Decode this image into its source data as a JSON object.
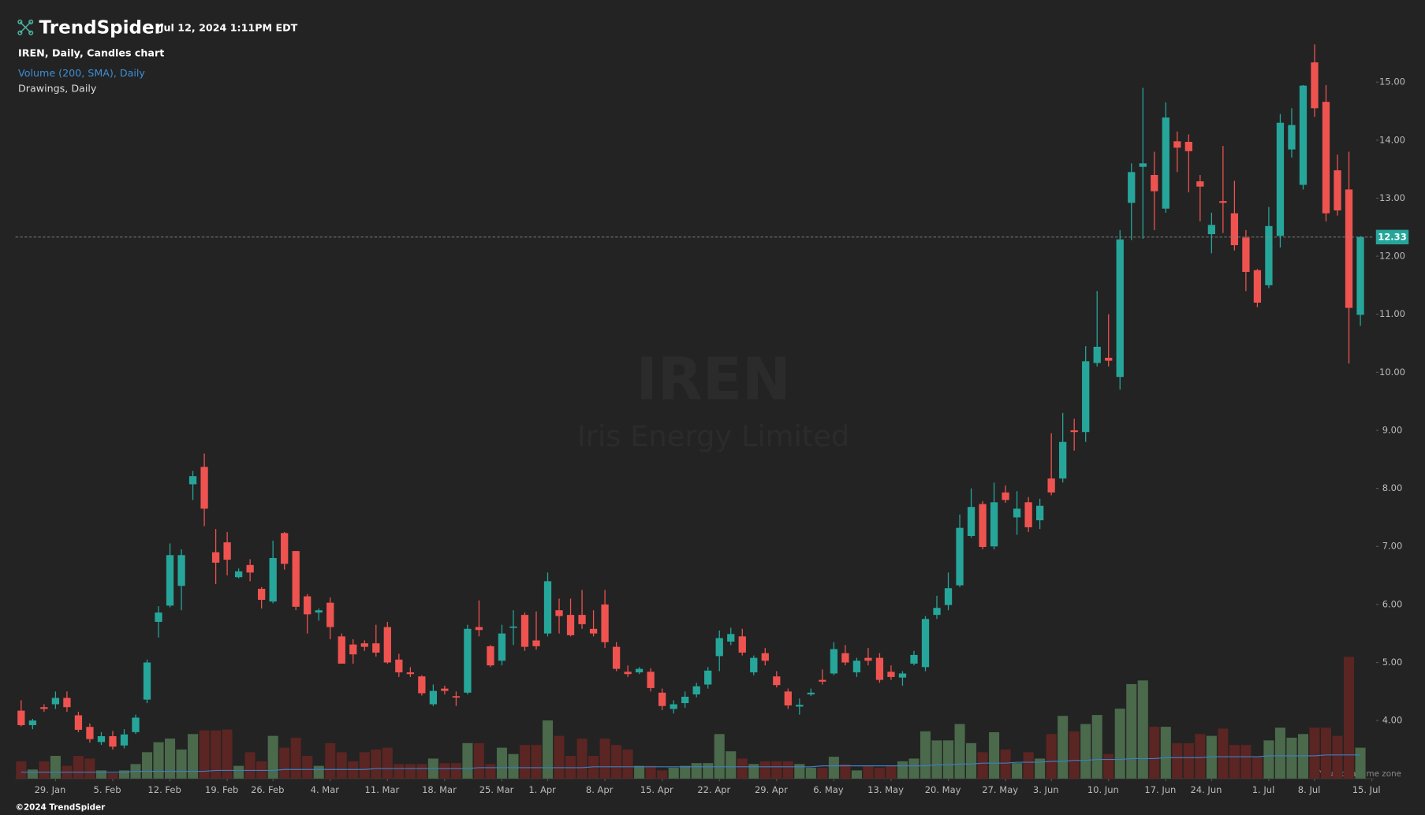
{
  "header": {
    "brand": "TrendSpider",
    "timestamp": "Jul 12, 2024 1:11PM EDT",
    "chart_label": "IREN, Daily, Candles chart",
    "volume_label": "Volume (200, SMA), Daily",
    "drawings_label": "Drawings, Daily"
  },
  "watermark": {
    "ticker": "IREN",
    "company": "Iris Energy Limited"
  },
  "footer": {
    "copyright": "©2024 TrendSpider",
    "timezone": "Your local time zone"
  },
  "chart_data": {
    "type": "candlestick",
    "up_color": "#26a69a",
    "down_color": "#ef5350",
    "volume_up_color": "#4a6a4b",
    "volume_down_color": "#5a2522",
    "sma_color": "#3d7fc4",
    "last_price_color": "#26a69a",
    "xlim": [
      -0.5,
      118.2
    ],
    "xticks": [
      {
        "value": 3,
        "label": "29. Jan"
      },
      {
        "value": 8,
        "label": "5. Feb"
      },
      {
        "value": 13,
        "label": "12. Feb"
      },
      {
        "value": 18,
        "label": "19. Feb"
      },
      {
        "value": 22,
        "label": "26. Feb"
      },
      {
        "value": 27,
        "label": "4. Mar"
      },
      {
        "value": 32,
        "label": "11. Mar"
      },
      {
        "value": 37,
        "label": "18. Mar"
      },
      {
        "value": 42,
        "label": "25. Mar"
      },
      {
        "value": 46,
        "label": "1. Apr"
      },
      {
        "value": 51,
        "label": "8. Apr"
      },
      {
        "value": 56,
        "label": "15. Apr"
      },
      {
        "value": 61,
        "label": "22. Apr"
      },
      {
        "value": 66,
        "label": "29. Apr"
      },
      {
        "value": 71,
        "label": "6. May"
      },
      {
        "value": 76,
        "label": "13. May"
      },
      {
        "value": 81,
        "label": "20. May"
      },
      {
        "value": 86,
        "label": "27. May"
      },
      {
        "value": 90,
        "label": "3. Jun"
      },
      {
        "value": 95,
        "label": "10. Jun"
      },
      {
        "value": 100,
        "label": "17. Jun"
      },
      {
        "value": 104,
        "label": "24. Jun"
      },
      {
        "value": 109,
        "label": "1. Jul"
      },
      {
        "value": 113,
        "label": "8. Jul"
      },
      {
        "value": 118,
        "label": "15. Jul"
      }
    ],
    "ylim": [
      3,
      16.1
    ],
    "yticks": [
      {
        "value": 4,
        "label": "4.00"
      },
      {
        "value": 5,
        "label": "5.00"
      },
      {
        "value": 6,
        "label": "6.00"
      },
      {
        "value": 7,
        "label": "7.00"
      },
      {
        "value": 8,
        "label": "8.00"
      },
      {
        "value": 9,
        "label": "9.00"
      },
      {
        "value": 10,
        "label": "10.00"
      },
      {
        "value": 11,
        "label": "11.00"
      },
      {
        "value": 12,
        "label": "12.00"
      },
      {
        "value": 13,
        "label": "13.00"
      },
      {
        "value": 14,
        "label": "14.00"
      },
      {
        "value": 15,
        "label": "15.00"
      }
    ],
    "last_price": 12.33,
    "open": [
      4.17,
      3.92,
      4.23,
      4.28,
      4.39,
      4.09,
      3.89,
      3.63,
      3.73,
      3.57,
      3.8,
      4.36,
      5.7,
      5.98,
      6.32,
      8.07,
      8.37,
      6.9,
      7.07,
      6.47,
      6.68,
      6.27,
      6.05,
      7.23,
      6.92,
      6.14,
      5.86,
      6.03,
      5.45,
      5.31,
      5.33,
      5.33,
      5.61,
      5.05,
      4.83,
      4.76,
      4.28,
      4.55,
      4.42,
      4.48,
      5.61,
      5.28,
      5.03,
      5.6,
      5.82,
      5.38,
      5.5,
      5.9,
      5.82,
      5.82,
      5.58,
      6.0,
      5.27,
      4.84,
      4.83,
      4.84,
      4.48,
      4.2,
      4.3,
      4.45,
      4.62,
      5.11,
      5.36,
      5.45,
      4.83,
      5.16,
      4.76,
      4.5,
      4.24,
      4.45,
      4.7,
      4.81,
      5.16,
      4.83,
      5.08,
      5.08,
      4.84,
      4.74,
      4.98,
      4.92,
      5.82,
      5.99,
      6.33,
      7.18,
      7.73,
      7.0,
      7.93,
      7.5,
      7.76,
      7.45,
      8.17,
      8.17,
      9.0,
      8.97,
      10.16,
      10.25,
      9.92,
      12.92,
      13.54,
      13.4,
      12.82,
      13.98,
      13.97,
      13.29,
      12.38,
      12.95,
      12.74,
      12.32,
      11.76,
      11.5,
      12.35,
      13.84,
      13.23,
      15.34,
      14.66,
      13.48,
      13.15,
      10.99
    ],
    "high": [
      4.35,
      4.03,
      4.28,
      4.5,
      4.5,
      4.15,
      3.95,
      3.8,
      3.82,
      3.85,
      4.1,
      5.05,
      5.97,
      7.05,
      6.95,
      8.3,
      8.6,
      7.3,
      7.25,
      6.62,
      6.78,
      6.3,
      7.1,
      7.25,
      6.92,
      6.18,
      5.93,
      6.12,
      5.5,
      5.4,
      5.38,
      5.65,
      5.7,
      5.15,
      4.92,
      4.78,
      4.62,
      4.6,
      4.5,
      5.65,
      6.07,
      5.3,
      5.65,
      5.9,
      5.86,
      5.88,
      6.55,
      6.1,
      6.1,
      6.25,
      5.9,
      6.25,
      5.35,
      4.95,
      4.92,
      4.9,
      4.55,
      4.35,
      4.5,
      4.65,
      4.92,
      5.55,
      5.6,
      5.58,
      5.12,
      5.25,
      4.85,
      4.55,
      4.38,
      4.55,
      4.88,
      5.35,
      5.3,
      5.08,
      5.25,
      5.16,
      4.95,
      4.85,
      5.2,
      5.8,
      6.15,
      6.55,
      7.55,
      8.0,
      7.78,
      8.1,
      8.05,
      7.95,
      7.85,
      7.82,
      8.95,
      9.3,
      9.2,
      10.45,
      11.4,
      11.0,
      12.45,
      13.6,
      14.9,
      13.8,
      14.65,
      14.15,
      14.1,
      13.4,
      12.75,
      13.9,
      13.3,
      12.45,
      11.78,
      12.85,
      14.45,
      14.55,
      14.95,
      15.65,
      14.95,
      13.75,
      13.8,
      12.35
    ],
    "low": [
      3.9,
      3.85,
      4.15,
      4.2,
      4.15,
      3.8,
      3.62,
      3.58,
      3.5,
      3.52,
      3.77,
      4.3,
      5.43,
      5.95,
      5.9,
      7.8,
      7.35,
      6.35,
      6.5,
      6.45,
      6.4,
      5.93,
      6.02,
      6.6,
      5.9,
      5.5,
      5.72,
      5.4,
      4.98,
      4.98,
      5.2,
      5.1,
      4.98,
      4.75,
      4.75,
      4.43,
      4.25,
      4.45,
      4.25,
      4.45,
      5.45,
      4.92,
      4.95,
      5.3,
      5.2,
      5.22,
      5.45,
      5.5,
      5.45,
      5.58,
      5.45,
      5.25,
      4.85,
      4.75,
      4.8,
      4.5,
      4.18,
      4.12,
      4.22,
      4.4,
      4.55,
      4.85,
      5.3,
      5.12,
      4.78,
      4.95,
      4.57,
      4.2,
      4.1,
      4.42,
      4.62,
      4.78,
      4.95,
      4.75,
      4.95,
      4.65,
      4.7,
      4.6,
      4.95,
      4.85,
      5.75,
      5.9,
      6.3,
      7.15,
      6.95,
      6.95,
      7.75,
      7.2,
      7.25,
      7.3,
      7.88,
      8.1,
      8.65,
      8.8,
      10.1,
      10.1,
      9.7,
      12.28,
      12.3,
      12.45,
      12.75,
      13.45,
      13.1,
      12.6,
      12.05,
      12.4,
      12.1,
      11.4,
      11.12,
      11.45,
      12.15,
      13.7,
      13.15,
      14.4,
      12.6,
      12.7,
      10.15,
      10.8
    ],
    "close": [
      3.92,
      4.0,
      4.2,
      4.39,
      4.23,
      3.84,
      3.68,
      3.73,
      3.55,
      3.76,
      4.05,
      5.0,
      5.86,
      6.85,
      6.85,
      8.21,
      7.65,
      6.72,
      6.77,
      6.57,
      6.55,
      6.08,
      6.8,
      6.7,
      5.96,
      5.83,
      5.9,
      5.61,
      4.98,
      5.14,
      5.27,
      5.17,
      5.0,
      4.83,
      4.8,
      4.47,
      4.51,
      4.51,
      4.4,
      5.58,
      5.56,
      4.95,
      5.5,
      5.62,
      5.27,
      5.28,
      6.4,
      5.8,
      5.47,
      5.66,
      5.5,
      5.35,
      4.89,
      4.8,
      4.89,
      4.56,
      4.25,
      4.28,
      4.41,
      4.59,
      4.86,
      5.42,
      5.49,
      5.17,
      5.08,
      5.03,
      4.61,
      4.26,
      4.27,
      4.48,
      4.67,
      5.23,
      5.0,
      5.03,
      5.03,
      4.7,
      4.75,
      4.81,
      5.13,
      5.75,
      5.94,
      6.28,
      7.32,
      7.68,
      6.99,
      7.76,
      7.8,
      7.65,
      7.33,
      7.7,
      7.93,
      8.8,
      8.97,
      10.19,
      10.44,
      10.2,
      12.29,
      13.45,
      13.6,
      13.12,
      14.39,
      13.87,
      13.81,
      13.2,
      12.54,
      12.92,
      12.19,
      11.73,
      11.2,
      12.52,
      14.3,
      14.26,
      14.94,
      14.55,
      12.74,
      12.79,
      11.11,
      12.33
    ],
    "volume_ylim": [
      0,
      83.7
    ],
    "volume": [
      1.9,
      1.0,
      1.9,
      2.5,
      1.4,
      2.5,
      2.2,
      0.9,
      0.6,
      0.9,
      1.6,
      2.9,
      4.0,
      4.4,
      3.2,
      4.9,
      5.3,
      5.3,
      5.4,
      1.4,
      2.9,
      1.9,
      4.7,
      3.4,
      4.5,
      2.5,
      1.4,
      3.9,
      2.9,
      1.9,
      2.9,
      3.2,
      3.4,
      1.6,
      1.6,
      1.6,
      2.2,
      1.7,
      1.7,
      3.9,
      3.9,
      1.6,
      3.4,
      2.7,
      3.7,
      3.7,
      6.4,
      4.7,
      2.5,
      4.4,
      2.5,
      4.4,
      3.7,
      3.2,
      1.4,
      1.4,
      0.9,
      1.2,
      1.4,
      1.7,
      1.7,
      4.9,
      3.0,
      2.2,
      1.6,
      1.9,
      1.9,
      1.9,
      1.6,
      1.2,
      1.2,
      2.4,
      1.6,
      0.9,
      1.4,
      1.2,
      1.4,
      1.9,
      2.2,
      5.2,
      4.2,
      4.2,
      6.0,
      3.9,
      2.9,
      5.1,
      3.2,
      1.7,
      2.9,
      2.2,
      4.9,
      6.9,
      5.2,
      6.0,
      7.0,
      2.7,
      7.7,
      10.4,
      10.8,
      5.7,
      5.7,
      3.9,
      3.9,
      4.9,
      4.7,
      5.5,
      3.7,
      3.7,
      2.4,
      4.2,
      5.6,
      4.5,
      4.9,
      5.6,
      5.6,
      4.7,
      13.4,
      3.4
    ],
    "volume_sma": [
      0.7,
      0.7,
      0.7,
      0.7,
      0.7,
      0.7,
      0.7,
      0.7,
      0.7,
      0.7,
      0.8,
      0.8,
      0.8,
      0.8,
      0.8,
      0.8,
      0.8,
      0.9,
      0.9,
      0.9,
      0.9,
      0.9,
      0.9,
      1.0,
      1.0,
      1.0,
      1.0,
      1.0,
      1.0,
      1.0,
      1.0,
      1.1,
      1.1,
      1.1,
      1.1,
      1.1,
      1.1,
      1.1,
      1.1,
      1.1,
      1.2,
      1.2,
      1.2,
      1.2,
      1.2,
      1.2,
      1.2,
      1.2,
      1.2,
      1.2,
      1.3,
      1.3,
      1.3,
      1.3,
      1.3,
      1.3,
      1.3,
      1.3,
      1.3,
      1.3,
      1.3,
      1.3,
      1.3,
      1.3,
      1.3,
      1.3,
      1.3,
      1.3,
      1.3,
      1.3,
      1.4,
      1.4,
      1.4,
      1.4,
      1.4,
      1.4,
      1.4,
      1.4,
      1.4,
      1.4,
      1.5,
      1.5,
      1.6,
      1.6,
      1.7,
      1.7,
      1.7,
      1.8,
      1.8,
      1.8,
      1.9,
      1.9,
      2.0,
      2.0,
      2.1,
      2.1,
      2.1,
      2.2,
      2.2,
      2.2,
      2.3,
      2.3,
      2.3,
      2.3,
      2.4,
      2.4,
      2.4,
      2.4,
      2.4,
      2.5,
      2.5,
      2.5,
      2.5,
      2.5,
      2.6,
      2.6,
      2.6,
      2.6
    ]
  }
}
